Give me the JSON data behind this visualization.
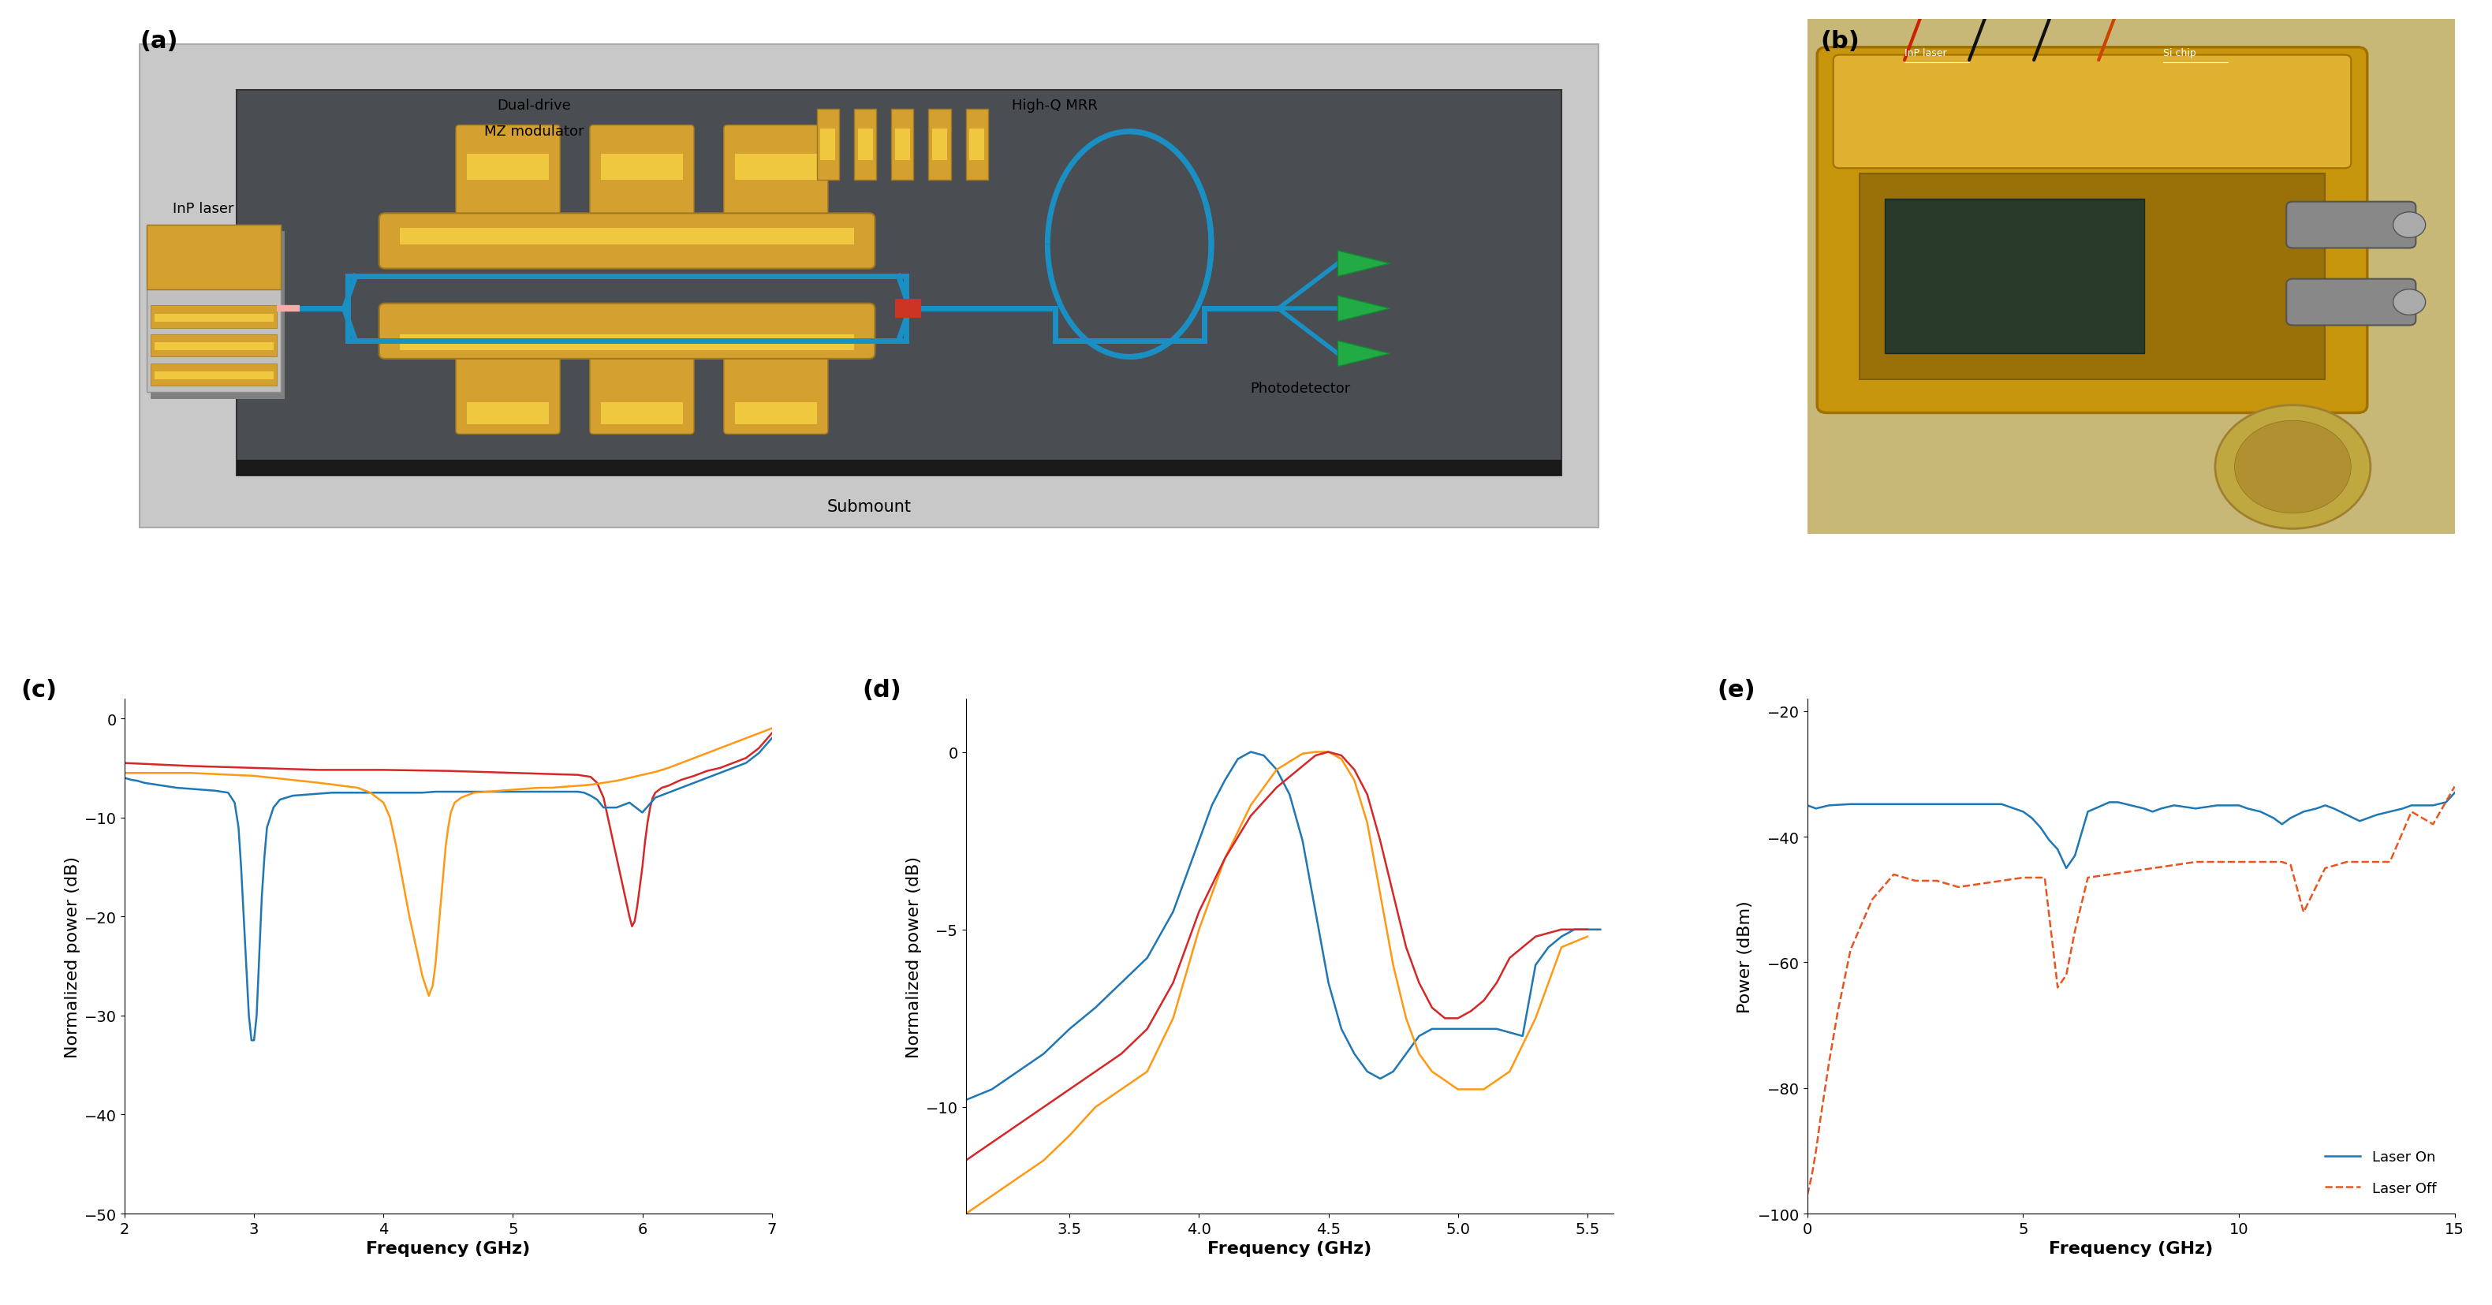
{
  "panel_labels": [
    "(a)",
    "(b)",
    "(c)",
    "(d)",
    "(e)"
  ],
  "panel_label_fontsize": 22,
  "plot_c": {
    "xlabel": "Frequency (GHz)",
    "ylabel": "Normalized power (dB)",
    "xlim": [
      2,
      7
    ],
    "ylim": [
      -50,
      2
    ],
    "xticks": [
      2,
      3,
      4,
      5,
      6,
      7
    ],
    "yticks": [
      0,
      -10,
      -20,
      -30,
      -40,
      -50
    ],
    "blue_color": "#1f77b4",
    "orange_color": "#ff9914",
    "red_color": "#d62728",
    "blue_x": [
      2.0,
      2.05,
      2.1,
      2.15,
      2.2,
      2.3,
      2.4,
      2.5,
      2.6,
      2.7,
      2.8,
      2.85,
      2.88,
      2.9,
      2.92,
      2.94,
      2.96,
      2.98,
      3.0,
      3.02,
      3.04,
      3.06,
      3.08,
      3.1,
      3.15,
      3.2,
      3.3,
      3.4,
      3.5,
      3.6,
      3.7,
      3.8,
      3.9,
      4.0,
      4.1,
      4.2,
      4.3,
      4.4,
      4.5,
      4.6,
      4.7,
      4.8,
      4.9,
      5.0,
      5.1,
      5.2,
      5.3,
      5.4,
      5.5,
      5.55,
      5.6,
      5.65,
      5.7,
      5.8,
      5.9,
      6.0,
      6.1,
      6.2,
      6.3,
      6.4,
      6.5,
      6.6,
      6.7,
      6.8,
      6.9,
      7.0
    ],
    "blue_y": [
      -6.0,
      -6.2,
      -6.3,
      -6.5,
      -6.6,
      -6.8,
      -7.0,
      -7.1,
      -7.2,
      -7.3,
      -7.5,
      -8.5,
      -11.0,
      -15.0,
      -20.0,
      -25.0,
      -30.0,
      -32.5,
      -32.5,
      -30.0,
      -24.0,
      -18.0,
      -14.0,
      -11.0,
      -9.0,
      -8.2,
      -7.8,
      -7.7,
      -7.6,
      -7.5,
      -7.5,
      -7.5,
      -7.5,
      -7.5,
      -7.5,
      -7.5,
      -7.5,
      -7.4,
      -7.4,
      -7.4,
      -7.4,
      -7.4,
      -7.4,
      -7.4,
      -7.4,
      -7.4,
      -7.4,
      -7.4,
      -7.4,
      -7.5,
      -7.8,
      -8.2,
      -9.0,
      -9.0,
      -8.5,
      -9.5,
      -8.0,
      -7.5,
      -7.0,
      -6.5,
      -6.0,
      -5.5,
      -5.0,
      -4.5,
      -3.5,
      -2.0
    ],
    "orange_x": [
      2.0,
      2.5,
      3.0,
      3.5,
      3.8,
      3.9,
      4.0,
      4.05,
      4.1,
      4.2,
      4.3,
      4.35,
      4.38,
      4.4,
      4.42,
      4.44,
      4.46,
      4.48,
      4.5,
      4.52,
      4.55,
      4.6,
      4.7,
      4.8,
      4.9,
      5.0,
      5.1,
      5.2,
      5.3,
      5.4,
      5.5,
      5.6,
      5.7,
      5.8,
      5.9,
      6.0,
      6.1,
      6.2,
      6.3,
      6.4,
      6.5,
      6.6,
      6.7,
      6.8,
      6.9,
      7.0
    ],
    "orange_y": [
      -5.5,
      -5.5,
      -5.8,
      -6.5,
      -7.0,
      -7.5,
      -8.5,
      -10.0,
      -13.0,
      -20.0,
      -26.0,
      -28.0,
      -27.0,
      -25.0,
      -22.0,
      -19.0,
      -16.0,
      -13.0,
      -11.0,
      -9.5,
      -8.5,
      -8.0,
      -7.5,
      -7.4,
      -7.3,
      -7.2,
      -7.1,
      -7.0,
      -7.0,
      -6.9,
      -6.8,
      -6.7,
      -6.5,
      -6.3,
      -6.0,
      -5.7,
      -5.4,
      -5.0,
      -4.5,
      -4.0,
      -3.5,
      -3.0,
      -2.5,
      -2.0,
      -1.5,
      -1.0
    ],
    "red_x": [
      2.0,
      2.5,
      3.0,
      3.5,
      4.0,
      4.5,
      5.0,
      5.5,
      5.6,
      5.65,
      5.7,
      5.75,
      5.8,
      5.85,
      5.9,
      5.92,
      5.94,
      5.96,
      5.98,
      6.0,
      6.02,
      6.04,
      6.06,
      6.08,
      6.1,
      6.15,
      6.2,
      6.3,
      6.4,
      6.5,
      6.6,
      6.7,
      6.8,
      6.9,
      7.0
    ],
    "red_y": [
      -4.5,
      -4.8,
      -5.0,
      -5.2,
      -5.2,
      -5.3,
      -5.5,
      -5.7,
      -5.9,
      -6.5,
      -8.0,
      -11.0,
      -14.0,
      -17.0,
      -20.0,
      -21.0,
      -20.5,
      -19.0,
      -17.0,
      -15.0,
      -12.5,
      -10.5,
      -9.0,
      -8.0,
      -7.5,
      -7.0,
      -6.8,
      -6.2,
      -5.8,
      -5.3,
      -5.0,
      -4.5,
      -4.0,
      -3.0,
      -1.5
    ]
  },
  "plot_d": {
    "xlabel": "Frequency (GHz)",
    "ylabel": "Normalized power (dB)",
    "xlim": [
      3.1,
      5.6
    ],
    "ylim": [
      -13,
      1.5
    ],
    "xticks": [
      3.5,
      4.0,
      4.5,
      5.0,
      5.5
    ],
    "yticks": [
      0,
      -5,
      -10
    ],
    "blue_color": "#1f77b4",
    "orange_color": "#ff9914",
    "red_color": "#d62728",
    "blue_x": [
      3.1,
      3.2,
      3.3,
      3.4,
      3.5,
      3.6,
      3.7,
      3.8,
      3.9,
      4.0,
      4.05,
      4.1,
      4.15,
      4.2,
      4.25,
      4.3,
      4.35,
      4.4,
      4.45,
      4.5,
      4.55,
      4.6,
      4.65,
      4.7,
      4.75,
      4.8,
      4.85,
      4.9,
      4.95,
      5.0,
      5.05,
      5.1,
      5.15,
      5.2,
      5.25,
      5.3,
      5.35,
      5.4,
      5.45,
      5.5,
      5.55
    ],
    "blue_y": [
      -9.8,
      -9.5,
      -9.0,
      -8.5,
      -7.8,
      -7.2,
      -6.5,
      -5.8,
      -4.5,
      -2.5,
      -1.5,
      -0.8,
      -0.2,
      0.0,
      -0.1,
      -0.5,
      -1.2,
      -2.5,
      -4.5,
      -6.5,
      -7.8,
      -8.5,
      -9.0,
      -9.2,
      -9.0,
      -8.5,
      -8.0,
      -7.8,
      -7.8,
      -7.8,
      -7.8,
      -7.8,
      -7.8,
      -7.9,
      -8.0,
      -6.0,
      -5.5,
      -5.2,
      -5.0,
      -5.0,
      -5.0
    ],
    "orange_x": [
      3.1,
      3.2,
      3.3,
      3.4,
      3.5,
      3.6,
      3.7,
      3.8,
      3.9,
      4.0,
      4.1,
      4.2,
      4.3,
      4.4,
      4.45,
      4.5,
      4.55,
      4.6,
      4.65,
      4.7,
      4.75,
      4.8,
      4.85,
      4.9,
      5.0,
      5.1,
      5.2,
      5.3,
      5.4,
      5.5
    ],
    "orange_y": [
      -13.0,
      -12.5,
      -12.0,
      -11.5,
      -10.8,
      -10.0,
      -9.5,
      -9.0,
      -7.5,
      -5.0,
      -3.0,
      -1.5,
      -0.5,
      -0.05,
      0.0,
      0.0,
      -0.2,
      -0.8,
      -2.0,
      -4.0,
      -6.0,
      -7.5,
      -8.5,
      -9.0,
      -9.5,
      -9.5,
      -9.0,
      -7.5,
      -5.5,
      -5.2
    ],
    "red_x": [
      3.1,
      3.2,
      3.3,
      3.4,
      3.5,
      3.6,
      3.7,
      3.8,
      3.9,
      4.0,
      4.1,
      4.2,
      4.3,
      4.4,
      4.45,
      4.5,
      4.55,
      4.6,
      4.65,
      4.7,
      4.75,
      4.8,
      4.85,
      4.9,
      4.95,
      5.0,
      5.05,
      5.1,
      5.15,
      5.2,
      5.3,
      5.4,
      5.5
    ],
    "red_y": [
      -11.5,
      -11.0,
      -10.5,
      -10.0,
      -9.5,
      -9.0,
      -8.5,
      -7.8,
      -6.5,
      -4.5,
      -3.0,
      -1.8,
      -1.0,
      -0.4,
      -0.1,
      0.0,
      -0.1,
      -0.5,
      -1.2,
      -2.5,
      -4.0,
      -5.5,
      -6.5,
      -7.2,
      -7.5,
      -7.5,
      -7.3,
      -7.0,
      -6.5,
      -5.8,
      -5.2,
      -5.0,
      -5.0
    ]
  },
  "plot_e": {
    "xlabel": "Frequency (GHz)",
    "ylabel": "Power (dBm)",
    "xlim": [
      0,
      15
    ],
    "ylim": [
      -100,
      -18
    ],
    "xticks": [
      0,
      5,
      10,
      15
    ],
    "yticks": [
      -20,
      -40,
      -60,
      -80,
      -100
    ],
    "laser_off_color": "#e85520",
    "laser_on_color": "#1f77b4",
    "legend_laser_off": "Laser Off",
    "legend_laser_on": "Laser On",
    "laser_on_x": [
      0.0,
      0.2,
      0.5,
      1.0,
      1.5,
      2.0,
      2.5,
      3.0,
      3.5,
      4.0,
      4.5,
      5.0,
      5.2,
      5.4,
      5.6,
      5.8,
      6.0,
      6.2,
      6.5,
      7.0,
      7.2,
      7.5,
      7.8,
      8.0,
      8.2,
      8.5,
      9.0,
      9.5,
      10.0,
      10.2,
      10.5,
      10.8,
      11.0,
      11.2,
      11.5,
      11.8,
      12.0,
      12.2,
      12.5,
      12.8,
      13.0,
      13.2,
      13.5,
      13.8,
      14.0,
      14.2,
      14.5,
      14.8,
      15.0
    ],
    "laser_on_y": [
      -35.0,
      -35.5,
      -35.0,
      -34.8,
      -34.8,
      -34.8,
      -34.8,
      -34.8,
      -34.8,
      -34.8,
      -34.8,
      -36.0,
      -37.0,
      -38.5,
      -40.5,
      -42.0,
      -45.0,
      -43.0,
      -36.0,
      -34.5,
      -34.5,
      -35.0,
      -35.5,
      -36.0,
      -35.5,
      -35.0,
      -35.5,
      -35.0,
      -35.0,
      -35.5,
      -36.0,
      -37.0,
      -38.0,
      -37.0,
      -36.0,
      -35.5,
      -35.0,
      -35.5,
      -36.5,
      -37.5,
      -37.0,
      -36.5,
      -36.0,
      -35.5,
      -35.0,
      -35.0,
      -35.0,
      -34.5,
      -33.0
    ],
    "laser_off_x": [
      0.0,
      0.1,
      0.2,
      0.3,
      0.5,
      0.7,
      1.0,
      1.5,
      2.0,
      2.5,
      3.0,
      3.5,
      4.0,
      4.5,
      5.0,
      5.5,
      5.8,
      6.0,
      6.2,
      6.5,
      7.0,
      7.5,
      8.0,
      8.5,
      9.0,
      9.5,
      10.0,
      10.5,
      11.0,
      11.2,
      11.5,
      12.0,
      12.5,
      13.0,
      13.5,
      14.0,
      14.5,
      15.0
    ],
    "laser_off_y": [
      -97.0,
      -94.0,
      -90.0,
      -85.0,
      -76.0,
      -68.0,
      -58.0,
      -50.0,
      -46.0,
      -47.0,
      -47.0,
      -48.0,
      -47.5,
      -47.0,
      -46.5,
      -46.5,
      -64.0,
      -62.0,
      -55.0,
      -46.5,
      -46.0,
      -45.5,
      -45.0,
      -44.5,
      -44.0,
      -44.0,
      -44.0,
      -44.0,
      -44.0,
      -44.5,
      -52.0,
      -45.0,
      -44.0,
      -44.0,
      -44.0,
      -36.0,
      -38.0,
      -32.0
    ]
  },
  "background_color": "#ffffff",
  "label_fontsize": 16,
  "tick_fontsize": 14,
  "linewidth": 1.8
}
